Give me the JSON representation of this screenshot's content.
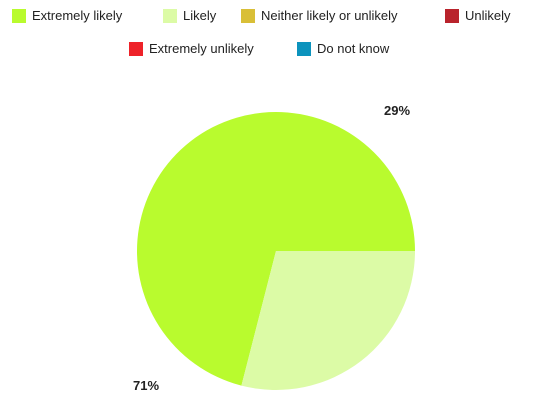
{
  "chart_data": {
    "type": "pie",
    "title": "",
    "legend_position": "top",
    "categories": [
      "Extremely likely",
      "Likely",
      "Neither likely or unlikely",
      "Unlikely",
      "Extremely unlikely",
      "Do not know"
    ],
    "colors": [
      "#b9fb2e",
      "#dcfba6",
      "#d9bf37",
      "#b9232c",
      "#ee2229",
      "#0c93bd"
    ],
    "values": [
      71,
      29,
      0,
      0,
      0,
      0
    ],
    "data_labels": [
      "71%",
      "29%",
      "",
      "",
      "",
      ""
    ]
  }
}
